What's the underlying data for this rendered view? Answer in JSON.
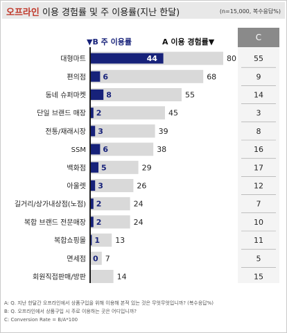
{
  "title": {
    "highlight": "오프라인",
    "rest": "이용 경험률 및 주 이용률(지난 한달)",
    "note": "(n=15,000, 복수응답%)"
  },
  "legend": {
    "b": "▼B 주 이용률",
    "a": "A 이용 경험률▼",
    "c": "C"
  },
  "colors": {
    "b_bar": "#17227a",
    "a_bar": "#d9d9d9"
  },
  "chart_data": {
    "type": "bar",
    "categories": [
      "대형마트",
      "편의점",
      "동네 슈퍼마켓",
      "단일 브랜드 매장",
      "전통/재래시장",
      "SSM",
      "백화점",
      "아울렛",
      "길거리/상가내상점(노점)",
      "복합 브랜드 전문매장",
      "복합쇼핑몰",
      "면세점",
      "회원직접판매/방판"
    ],
    "series": [
      {
        "name": "A 이용 경험률",
        "values": [
          80,
          68,
          55,
          45,
          39,
          38,
          29,
          26,
          24,
          24,
          13,
          7,
          14
        ]
      },
      {
        "name": "B 주 이용률",
        "values": [
          44,
          6,
          8,
          2,
          3,
          6,
          5,
          3,
          2,
          2,
          1,
          0,
          null
        ]
      },
      {
        "name": "C",
        "values": [
          55,
          9,
          14,
          3,
          8,
          16,
          17,
          12,
          7,
          10,
          11,
          5,
          15
        ]
      }
    ],
    "xlim": [
      0,
      80
    ]
  },
  "footer": [
    "A: Q. 지난 한달간 오프라인에서 상품구입을 위해 이용해 본적 있는 것은 무엇무엇입니까? (복수응답%)",
    "B: Q. 오프라인에서 상품구입 시 주로 이용하는 곳은 어디입니까?",
    "C: Conversion Rate = B/A*100"
  ]
}
